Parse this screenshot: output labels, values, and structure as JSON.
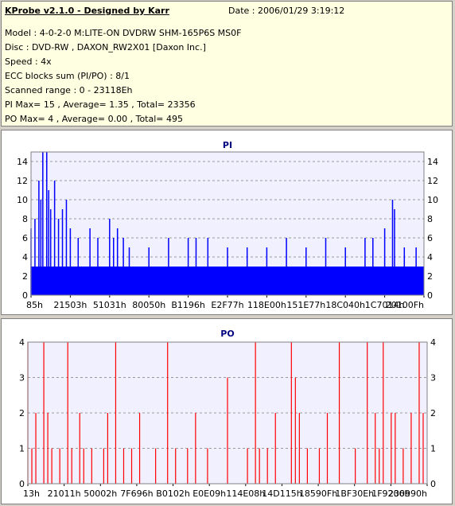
{
  "header": {
    "title": "KProbe v2.1.0 - Designed by Karr",
    "date": "Date : 2006/01/29 3:19:12",
    "lines": [
      "Model : 4-0-2-0 M:LITE-ON DVDRW SHM-165P6S MS0F",
      "Disc : DVD-RW , DAXON_RW2X01 [Daxon Inc.]",
      "Speed : 4x",
      "ECC blocks sum (PI/PO) : 8/1",
      "Scanned range : 0 - 23118Eh",
      "PI Max= 15 , Average= 1.35 , Total= 23356",
      "PO Max= 4 , Average= 0.00 , Total= 495"
    ]
  },
  "chart_data": [
    {
      "type": "bar",
      "title": "PI",
      "ylim": [
        0,
        15
      ],
      "yticks": [
        0,
        2,
        4,
        6,
        8,
        10,
        12,
        14
      ],
      "xticks": [
        "85h",
        "21503h",
        "51031h",
        "80050h",
        "B1196h",
        "E2F77h",
        "118E00h",
        "151E77h",
        "18C040h",
        "1C7014h",
        "20100Fh"
      ],
      "grid": true,
      "color": "#0000ff",
      "baseline": 3,
      "spikes": [
        [
          0.0,
          7
        ],
        [
          0.01,
          8
        ],
        [
          0.02,
          12
        ],
        [
          0.025,
          10
        ],
        [
          0.03,
          15
        ],
        [
          0.04,
          15
        ],
        [
          0.045,
          11
        ],
        [
          0.05,
          9
        ],
        [
          0.06,
          12
        ],
        [
          0.07,
          8
        ],
        [
          0.08,
          9
        ],
        [
          0.09,
          10
        ],
        [
          0.1,
          7
        ],
        [
          0.12,
          6
        ],
        [
          0.15,
          7
        ],
        [
          0.17,
          6
        ],
        [
          0.2,
          8
        ],
        [
          0.21,
          6
        ],
        [
          0.22,
          7
        ],
        [
          0.235,
          6
        ],
        [
          0.25,
          5
        ],
        [
          0.3,
          5
        ],
        [
          0.35,
          6
        ],
        [
          0.4,
          6
        ],
        [
          0.42,
          6
        ],
        [
          0.45,
          6
        ],
        [
          0.5,
          5
        ],
        [
          0.55,
          5
        ],
        [
          0.6,
          5
        ],
        [
          0.65,
          6
        ],
        [
          0.7,
          5
        ],
        [
          0.75,
          6
        ],
        [
          0.8,
          5
        ],
        [
          0.85,
          6
        ],
        [
          0.87,
          6
        ],
        [
          0.9,
          7
        ],
        [
          0.92,
          10
        ],
        [
          0.925,
          9
        ],
        [
          0.95,
          5
        ],
        [
          0.98,
          5
        ]
      ]
    },
    {
      "type": "bar",
      "title": "PO",
      "ylim": [
        0,
        4
      ],
      "yticks": [
        0,
        1,
        2,
        3,
        4
      ],
      "xticks": [
        "13h",
        "21011h",
        "50002h",
        "7F696h",
        "B0102h",
        "E0E09h",
        "114E08h",
        "14D115h",
        "18590Fh",
        "1BF30Eh",
        "1F9206h",
        "230990h"
      ],
      "grid": true,
      "color": "#ff0000",
      "spikes": [
        [
          0.0,
          4
        ],
        [
          0.01,
          1
        ],
        [
          0.02,
          2
        ],
        [
          0.04,
          4
        ],
        [
          0.05,
          2
        ],
        [
          0.06,
          1
        ],
        [
          0.08,
          1
        ],
        [
          0.1,
          4
        ],
        [
          0.11,
          1
        ],
        [
          0.13,
          2
        ],
        [
          0.14,
          1
        ],
        [
          0.16,
          1
        ],
        [
          0.19,
          1
        ],
        [
          0.2,
          2
        ],
        [
          0.22,
          4
        ],
        [
          0.24,
          1
        ],
        [
          0.26,
          1
        ],
        [
          0.28,
          2
        ],
        [
          0.32,
          1
        ],
        [
          0.35,
          4
        ],
        [
          0.37,
          1
        ],
        [
          0.4,
          1
        ],
        [
          0.42,
          2
        ],
        [
          0.45,
          1
        ],
        [
          0.5,
          3
        ],
        [
          0.55,
          1
        ],
        [
          0.57,
          4
        ],
        [
          0.58,
          1
        ],
        [
          0.6,
          1
        ],
        [
          0.62,
          2
        ],
        [
          0.66,
          4
        ],
        [
          0.67,
          3
        ],
        [
          0.68,
          2
        ],
        [
          0.7,
          1
        ],
        [
          0.73,
          1
        ],
        [
          0.75,
          2
        ],
        [
          0.78,
          4
        ],
        [
          0.82,
          1
        ],
        [
          0.85,
          4
        ],
        [
          0.87,
          2
        ],
        [
          0.88,
          1
        ],
        [
          0.89,
          4
        ],
        [
          0.91,
          2
        ],
        [
          0.92,
          2
        ],
        [
          0.94,
          1
        ],
        [
          0.96,
          2
        ],
        [
          0.98,
          4
        ],
        [
          0.99,
          2
        ]
      ]
    }
  ]
}
